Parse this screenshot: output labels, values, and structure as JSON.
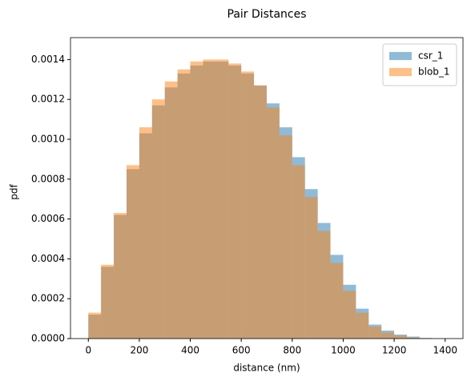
{
  "chart_data": {
    "type": "histogram",
    "title": "Pair Distances",
    "x_label": "distance (nm)",
    "y_label": "pdf",
    "bins": [
      0,
      50,
      100,
      150,
      200,
      250,
      300,
      350,
      400,
      450,
      500,
      550,
      600,
      650,
      700,
      750,
      800,
      850,
      900,
      950,
      1000,
      1050,
      1100,
      1150,
      1200,
      1250,
      1300,
      1350,
      1400
    ],
    "series": [
      {
        "name": "csr_1",
        "color": "#1f77b4",
        "opacity": 0.5,
        "values": [
          0.00012,
          0.00036,
          0.00062,
          0.00085,
          0.00103,
          0.00117,
          0.00126,
          0.00133,
          0.00137,
          0.00139,
          0.00139,
          0.00137,
          0.00133,
          0.00127,
          0.00118,
          0.00106,
          0.00091,
          0.00075,
          0.00058,
          0.00042,
          0.00027,
          0.00015,
          7e-05,
          4e-05,
          2e-05,
          1e-05,
          3e-06,
          5e-07
        ]
      },
      {
        "name": "blob_1",
        "color": "#ff7f0e",
        "opacity": 0.5,
        "values": [
          0.00013,
          0.00037,
          0.00063,
          0.00087,
          0.00106,
          0.0012,
          0.00129,
          0.00135,
          0.00139,
          0.0014,
          0.0014,
          0.00138,
          0.00134,
          0.00127,
          0.00116,
          0.00102,
          0.00087,
          0.00071,
          0.00054,
          0.00038,
          0.00024,
          0.00013,
          6e-05,
          3e-05,
          1.5e-05,
          5e-06,
          2e-06,
          0
        ]
      }
    ],
    "xlim": [
      -70,
      1470
    ],
    "ylim": [
      0,
      0.00151
    ],
    "xticks": [
      0,
      200,
      400,
      600,
      800,
      1000,
      1200,
      1400
    ],
    "yticks": [
      {
        "value": 0,
        "label": "0.0000"
      },
      {
        "value": 0.0002,
        "label": "0.0002"
      },
      {
        "value": 0.0004,
        "label": "0.0004"
      },
      {
        "value": 0.0006,
        "label": "0.0006"
      },
      {
        "value": 0.0008,
        "label": "0.0008"
      },
      {
        "value": 0.001,
        "label": "0.0010"
      },
      {
        "value": 0.0012,
        "label": "0.0012"
      },
      {
        "value": 0.0014,
        "label": "0.0014"
      }
    ],
    "legend": "upper right"
  }
}
